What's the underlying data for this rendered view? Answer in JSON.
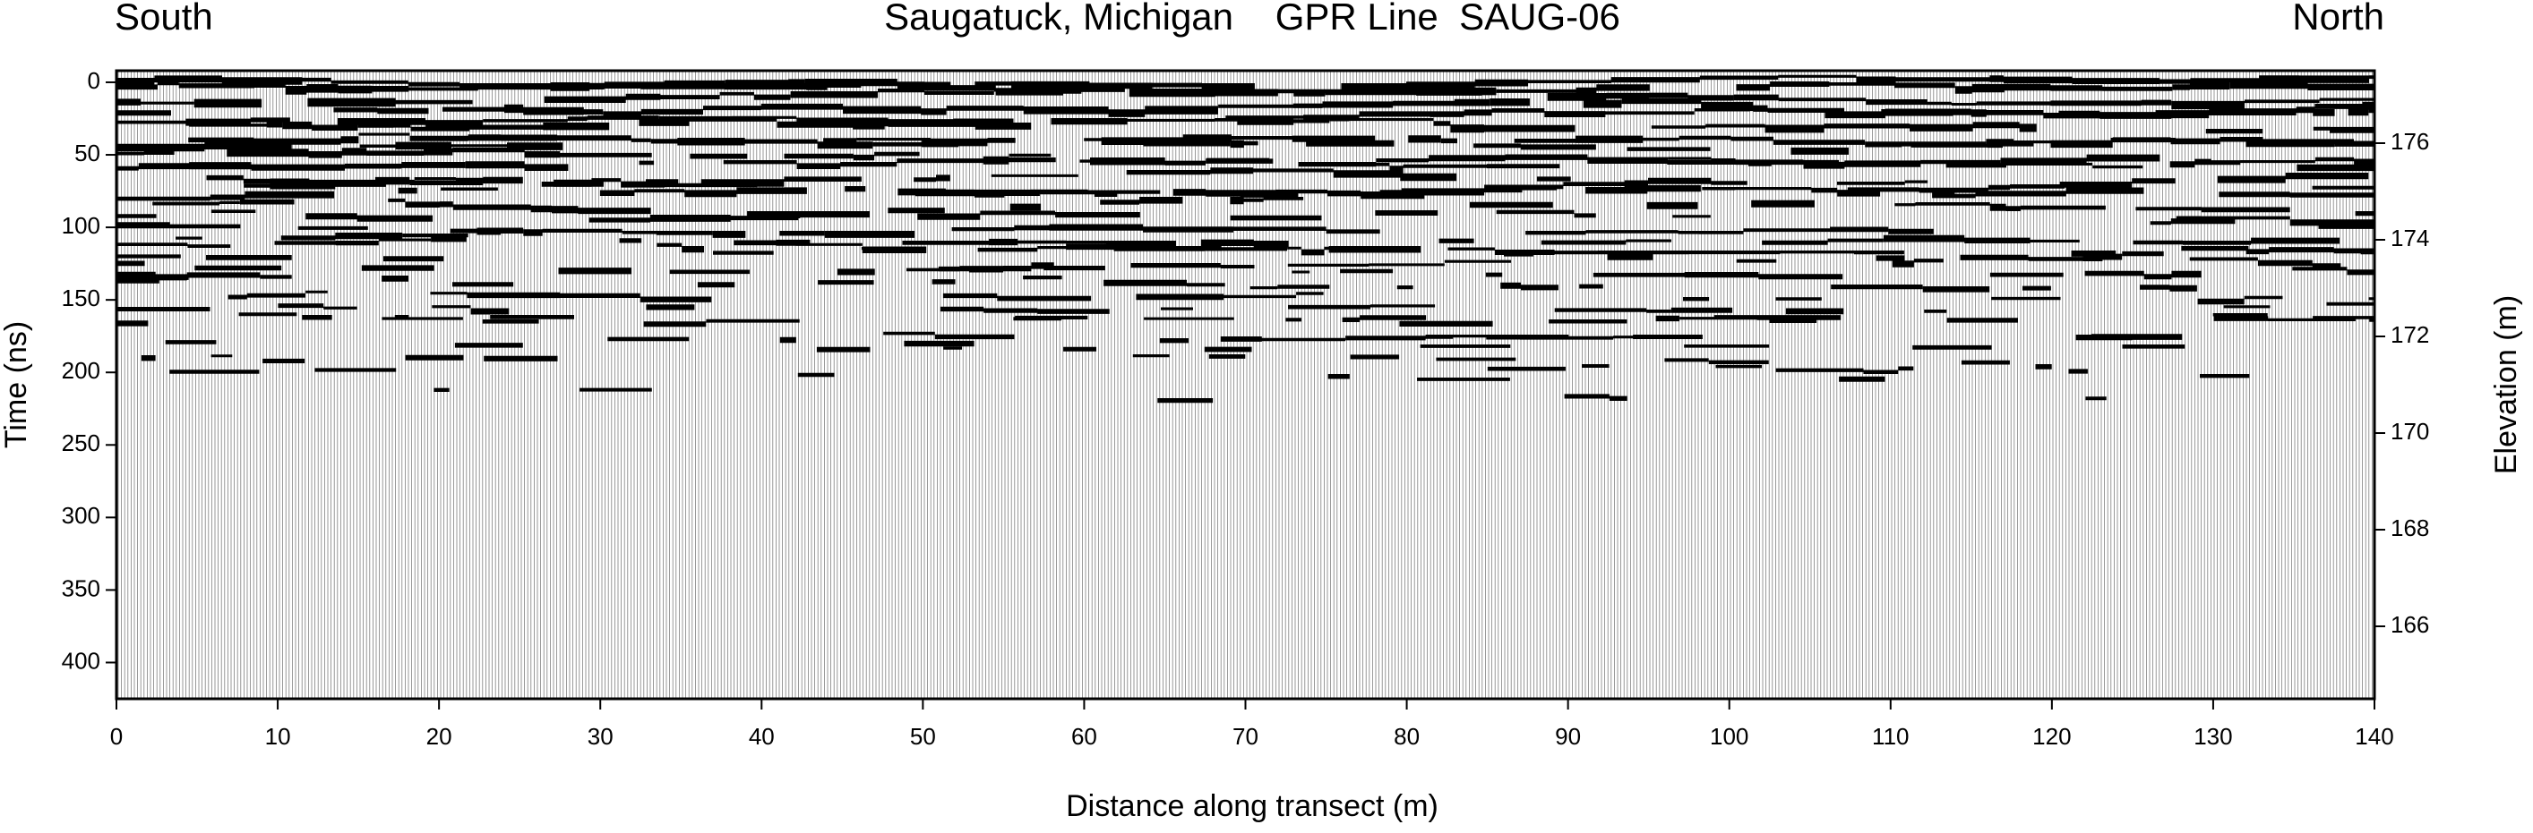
{
  "chart_data": {
    "type": "radargram",
    "title": "Saugatuck, Michigan    GPR Line  SAUG-06",
    "left_label": "South",
    "right_label": "North",
    "x_label": "Distance along transect (m)",
    "y_label": "Time (ns)",
    "y2_label": "Elevation (m)",
    "xlim": [
      0,
      140
    ],
    "xticks": [
      0,
      10,
      20,
      30,
      40,
      50,
      60,
      70,
      80,
      90,
      100,
      110,
      120,
      130,
      140
    ],
    "ylim": [
      425,
      -8
    ],
    "yticks": [
      0,
      50,
      100,
      150,
      200,
      250,
      300,
      350,
      400
    ],
    "y2lim": [
      164.5,
      177.5
    ],
    "y2ticks": [
      166,
      168,
      170,
      172,
      174,
      176
    ]
  }
}
